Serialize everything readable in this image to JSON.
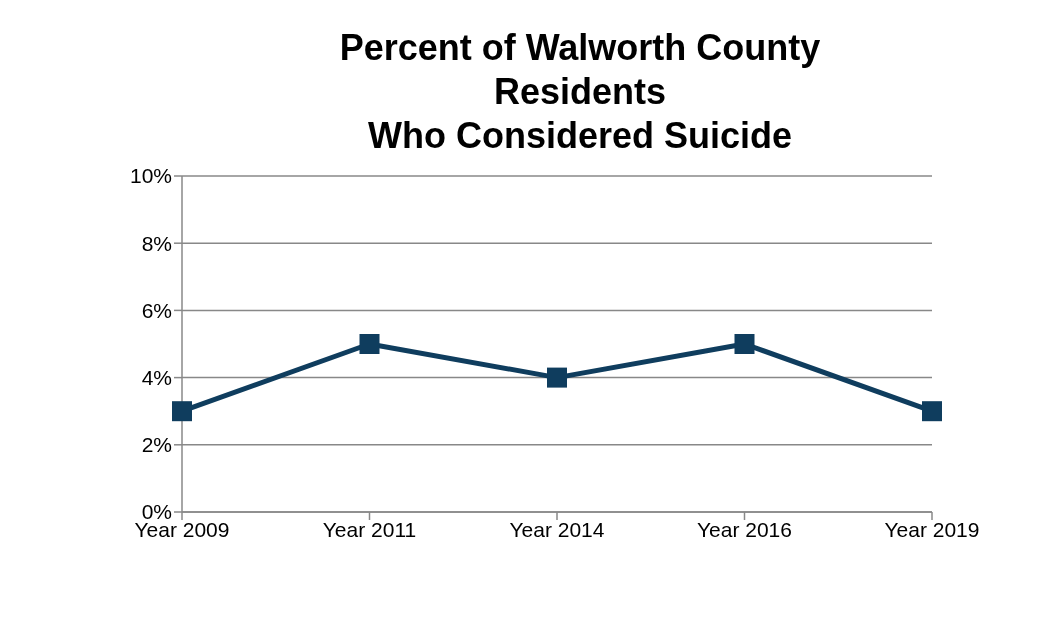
{
  "chart_data": {
    "type": "line",
    "title": "Percent of Walworth County\nResidents\nWho Considered Suicide",
    "categories": [
      "Year  2009",
      "Year  2011",
      "Year  2014",
      "Year  2016",
      "Year 2019"
    ],
    "series": [
      {
        "color": "#0f3d5e",
        "values": [
          3,
          5,
          4,
          5,
          3
        ]
      }
    ],
    "ylim": [
      0,
      10
    ],
    "yticks": [
      {
        "value": 0,
        "label": "0%"
      },
      {
        "value": 2,
        "label": "2%"
      },
      {
        "value": 4,
        "label": "4%"
      },
      {
        "value": 6,
        "label": "6%"
      },
      {
        "value": 8,
        "label": "8%"
      },
      {
        "value": 10,
        "label": "10%"
      }
    ],
    "grid": "y",
    "marker": "square",
    "legend": false
  }
}
